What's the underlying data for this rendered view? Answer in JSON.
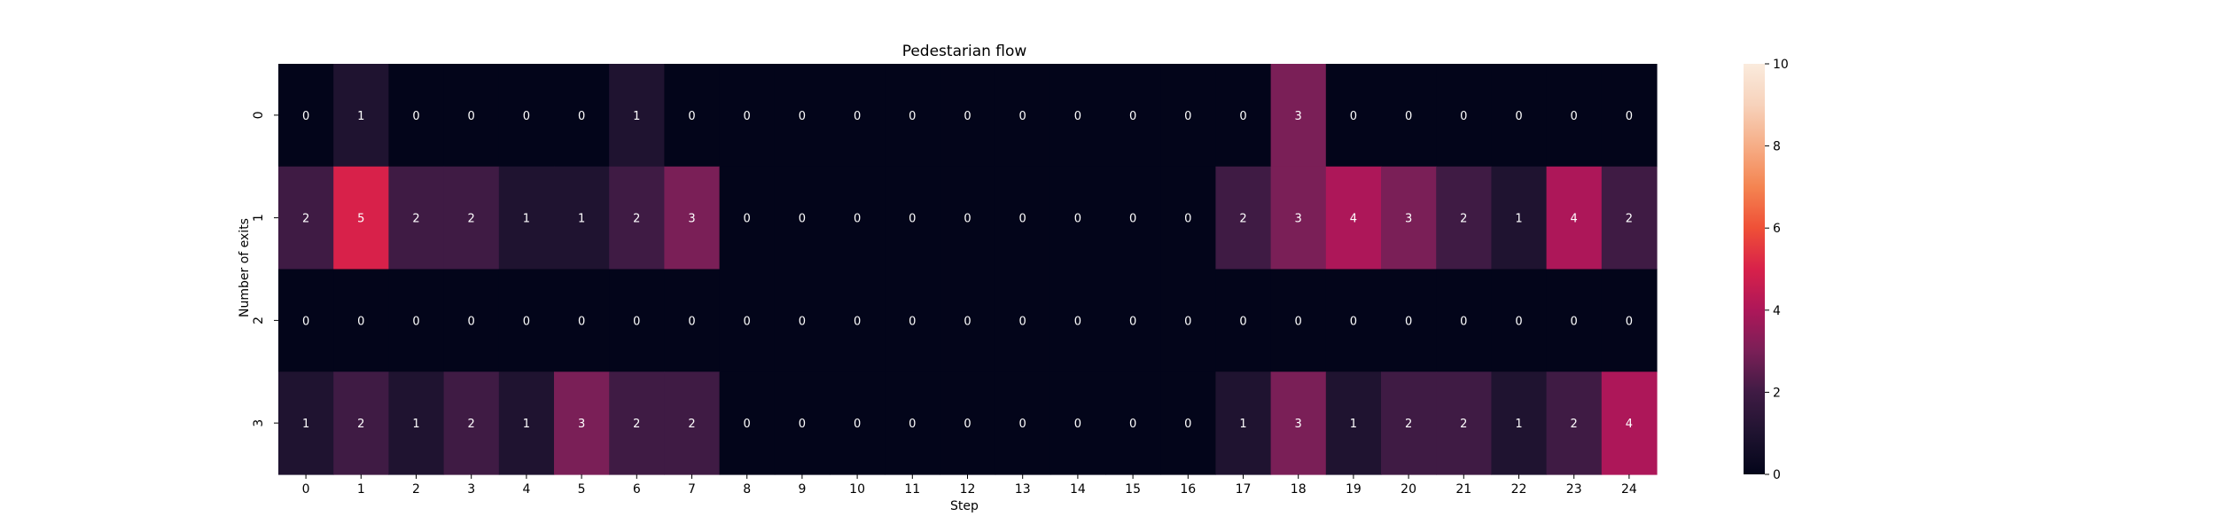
{
  "chart_data": {
    "type": "heatmap",
    "title": "Pedestarian flow",
    "xlabel": "Step",
    "ylabel": "Number of exits",
    "x_ticks": [
      "0",
      "1",
      "2",
      "3",
      "4",
      "5",
      "6",
      "7",
      "8",
      "9",
      "10",
      "11",
      "12",
      "13",
      "14",
      "15",
      "16",
      "17",
      "18",
      "19",
      "20",
      "21",
      "22",
      "23",
      "24"
    ],
    "y_ticks": [
      "0",
      "1",
      "2",
      "3"
    ],
    "values": [
      [
        0,
        1,
        0,
        0,
        0,
        0,
        1,
        0,
        0,
        0,
        0,
        0,
        0,
        0,
        0,
        0,
        0,
        0,
        3,
        0,
        0,
        0,
        0,
        0,
        0
      ],
      [
        2,
        5,
        2,
        2,
        1,
        1,
        2,
        3,
        0,
        0,
        0,
        0,
        0,
        0,
        0,
        0,
        0,
        2,
        3,
        4,
        3,
        2,
        1,
        4,
        2
      ],
      [
        0,
        0,
        0,
        0,
        0,
        0,
        0,
        0,
        0,
        0,
        0,
        0,
        0,
        0,
        0,
        0,
        0,
        0,
        0,
        0,
        0,
        0,
        0,
        0,
        0
      ],
      [
        1,
        2,
        1,
        2,
        1,
        3,
        2,
        2,
        0,
        0,
        0,
        0,
        0,
        0,
        0,
        0,
        0,
        1,
        3,
        1,
        2,
        2,
        1,
        2,
        4
      ]
    ],
    "colorbar": {
      "min": 0,
      "max": 10,
      "ticks": [
        "0",
        "2",
        "4",
        "6",
        "8",
        "10"
      ],
      "colormap": "rocket"
    },
    "annotated": true,
    "grid": false
  }
}
